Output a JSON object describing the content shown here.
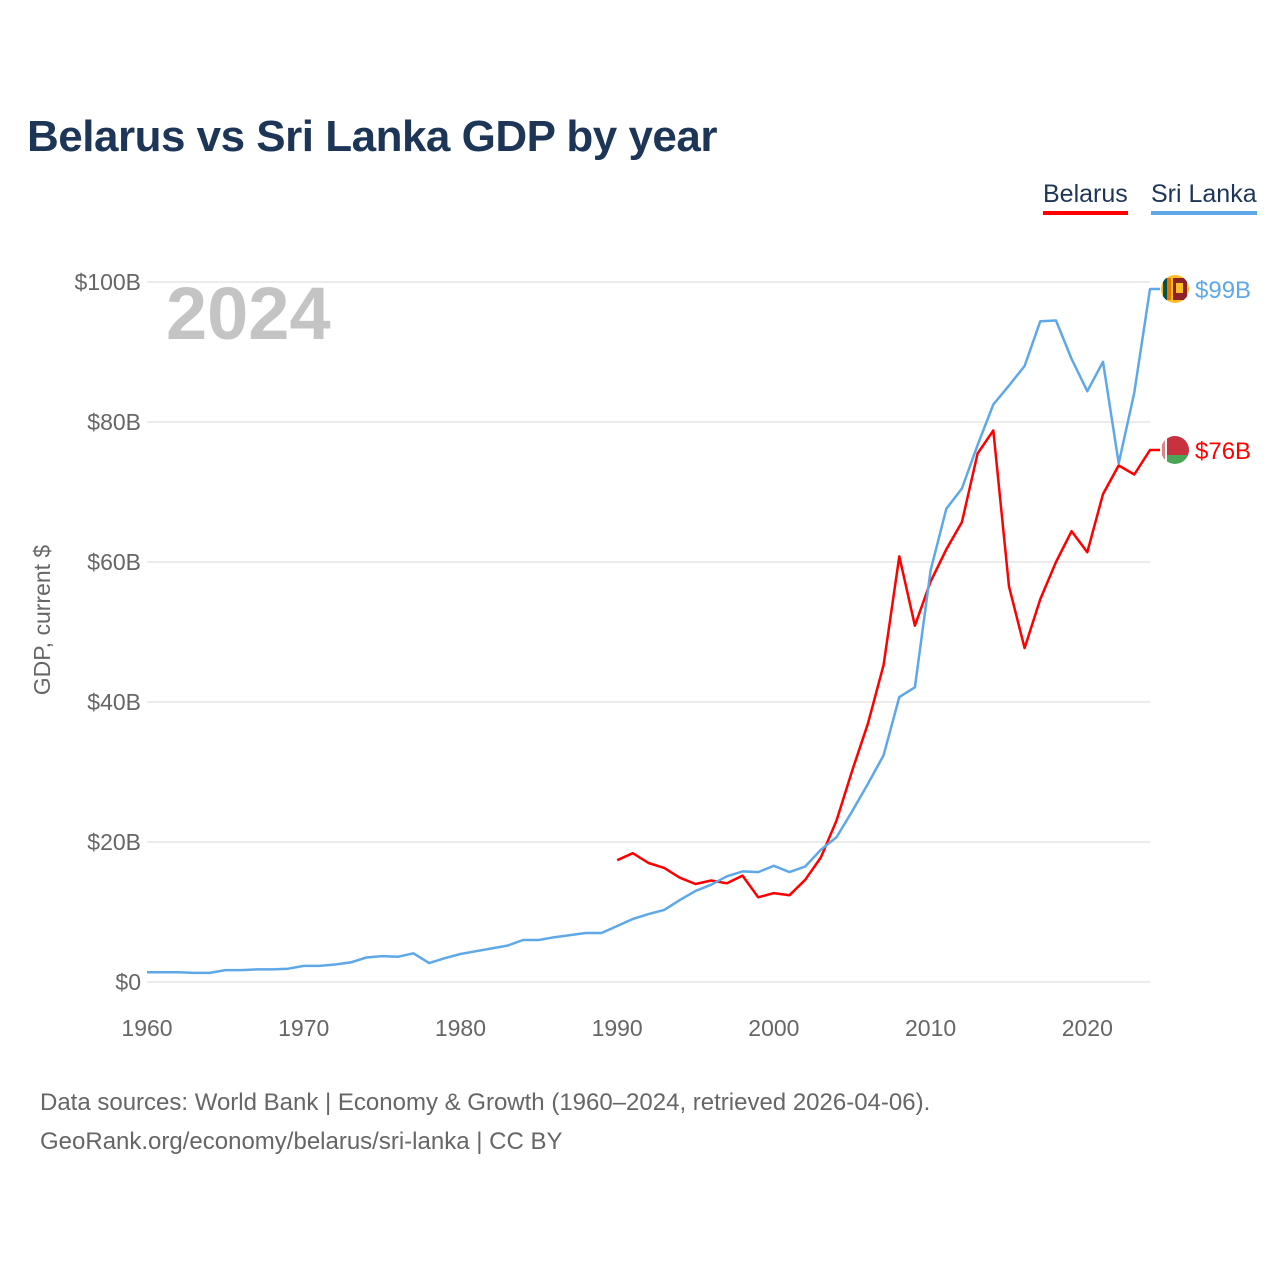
{
  "title": "Belarus vs Sri Lanka GDP by year",
  "year_watermark": "2024",
  "legend": [
    {
      "label": "Belarus",
      "color": "#ff0000"
    },
    {
      "label": "Sri Lanka",
      "color": "#5ea8e8"
    }
  ],
  "footer": {
    "line1": "Data sources: World Bank | Economy & Growth (1960–2024, retrieved 2026-04-06).",
    "line2": "GeoRank.org/economy/belarus/sri-lanka | CC BY"
  },
  "chart_data": {
    "type": "line",
    "title": "Belarus vs Sri Lanka GDP by year",
    "xlabel": "",
    "ylabel": "GDP, current $",
    "xlim": [
      1960,
      2024
    ],
    "ylim": [
      0,
      100
    ],
    "x_ticks": [
      "1960",
      "1970",
      "1980",
      "1990",
      "2000",
      "2010",
      "2020"
    ],
    "y_ticks": [
      "$0",
      "$20B",
      "$40B",
      "$60B",
      "$80B",
      "$100B"
    ],
    "grid": true,
    "legend_position": "top-right",
    "series": [
      {
        "name": "Belarus",
        "color": "#ff0000",
        "end_label": "$76B",
        "flag": "belarus-flag",
        "start_year": 1990,
        "values": [
          17.4,
          18.4,
          17.0,
          16.3,
          14.9,
          14.0,
          14.5,
          14.1,
          15.2,
          12.1,
          12.7,
          12.4,
          14.6,
          17.8,
          23.1,
          30.2,
          36.9,
          45.3,
          60.8,
          50.9,
          57.2,
          61.8,
          65.7,
          75.5,
          78.8,
          56.5,
          47.7,
          54.7,
          60.0,
          64.4,
          61.4,
          69.7,
          73.8,
          72.5,
          76.0
        ]
      },
      {
        "name": "Sri Lanka",
        "color": "#5ea8e8",
        "end_label": "$99B",
        "flag": "sri-lanka-flag",
        "start_year": 1960,
        "values": [
          1.4,
          1.4,
          1.4,
          1.3,
          1.3,
          1.7,
          1.7,
          1.8,
          1.8,
          1.9,
          2.3,
          2.3,
          2.5,
          2.8,
          3.5,
          3.7,
          3.6,
          4.1,
          2.7,
          3.4,
          4.0,
          4.4,
          4.8,
          5.2,
          6.0,
          6.0,
          6.4,
          6.7,
          7.0,
          7.0,
          8.0,
          9.0,
          9.7,
          10.3,
          11.7,
          13.0,
          13.9,
          15.1,
          15.8,
          15.7,
          16.6,
          15.7,
          16.5,
          18.9,
          20.7,
          24.4,
          28.3,
          32.4,
          40.7,
          42.1,
          58.8,
          67.6,
          70.5,
          76.7,
          82.5,
          85.2,
          88.0,
          94.4,
          94.5,
          89.0,
          84.4,
          88.6,
          74.1,
          84.2,
          99.0
        ]
      }
    ]
  }
}
